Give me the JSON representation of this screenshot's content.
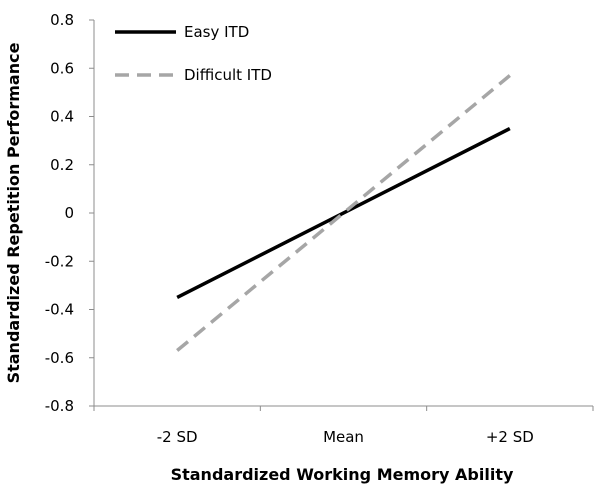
{
  "chart_data": {
    "type": "line",
    "title": "",
    "xlabel": "Standardized Working Memory Ability",
    "ylabel": "Standardized Repetition Performance",
    "categories": [
      "-2 SD",
      "Mean",
      "+2 SD"
    ],
    "ylim": [
      -0.8,
      0.8
    ],
    "yticks": [
      -0.8,
      -0.6,
      -0.4,
      -0.2,
      0,
      0.2,
      0.4,
      0.6,
      0.8
    ],
    "grid": false,
    "legend_position": "top-left",
    "series": [
      {
        "name": "Easy ITD",
        "x": [
          -2,
          2
        ],
        "y": [
          -0.35,
          0.35
        ],
        "color": "#000000",
        "style": "solid"
      },
      {
        "name": "Difficult ITD",
        "x": [
          -2,
          2
        ],
        "y": [
          -0.57,
          0.57
        ],
        "color": "#a6a6a6",
        "style": "dashed"
      }
    ]
  }
}
